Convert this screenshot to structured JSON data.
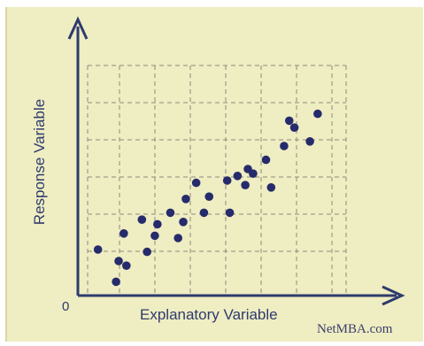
{
  "chart_data": {
    "type": "scatter",
    "title": "",
    "xlabel": "Explanatory Variable",
    "ylabel": "Response Variable",
    "origin_label": "0",
    "xlim": [
      0,
      10
    ],
    "ylim": [
      0,
      10
    ],
    "grid": true,
    "points": [
      {
        "x": 0.4,
        "y": 2.0
      },
      {
        "x": 1.1,
        "y": 0.6
      },
      {
        "x": 1.2,
        "y": 1.5
      },
      {
        "x": 1.4,
        "y": 2.7
      },
      {
        "x": 1.5,
        "y": 1.3
      },
      {
        "x": 2.1,
        "y": 3.3
      },
      {
        "x": 2.3,
        "y": 1.9
      },
      {
        "x": 2.6,
        "y": 2.6
      },
      {
        "x": 2.7,
        "y": 3.1
      },
      {
        "x": 3.2,
        "y": 3.6
      },
      {
        "x": 3.5,
        "y": 2.5
      },
      {
        "x": 3.7,
        "y": 3.2
      },
      {
        "x": 3.8,
        "y": 4.2
      },
      {
        "x": 4.2,
        "y": 4.9
      },
      {
        "x": 4.5,
        "y": 3.6
      },
      {
        "x": 4.7,
        "y": 4.3
      },
      {
        "x": 5.4,
        "y": 5.0
      },
      {
        "x": 5.5,
        "y": 3.6
      },
      {
        "x": 5.8,
        "y": 5.2
      },
      {
        "x": 6.1,
        "y": 4.8
      },
      {
        "x": 6.2,
        "y": 5.5
      },
      {
        "x": 6.4,
        "y": 5.3
      },
      {
        "x": 6.9,
        "y": 5.9
      },
      {
        "x": 7.1,
        "y": 4.7
      },
      {
        "x": 7.6,
        "y": 6.5
      },
      {
        "x": 7.8,
        "y": 7.6
      },
      {
        "x": 8.0,
        "y": 7.3
      },
      {
        "x": 8.6,
        "y": 6.7
      },
      {
        "x": 8.9,
        "y": 7.9
      }
    ]
  },
  "colors": {
    "background": "#efedc2",
    "axis": "#2e3b6e",
    "points": "#252b6b",
    "grid": "#8c8b7a"
  },
  "watermark": "NetMBA.com"
}
